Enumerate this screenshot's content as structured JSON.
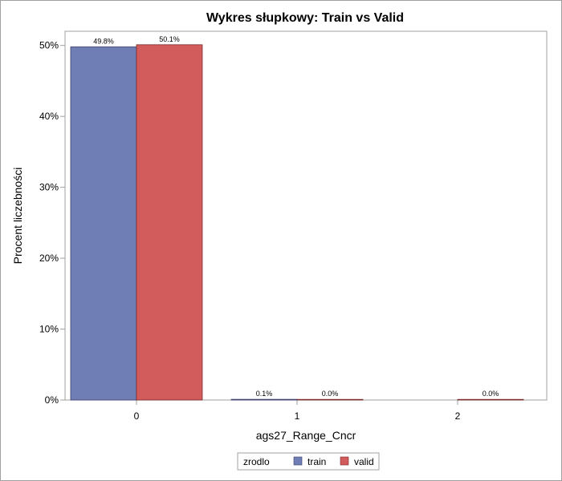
{
  "chart_data": {
    "type": "bar",
    "title": "Wykres słupkowy: Train vs Valid",
    "xlabel": "ags27_Range_Cncr",
    "ylabel": "Procent liczebności",
    "categories": [
      "0",
      "1",
      "2"
    ],
    "ylim": [
      0,
      52
    ],
    "yticks": [
      0,
      10,
      20,
      30,
      40,
      50
    ],
    "ytick_labels": [
      "0%",
      "10%",
      "20%",
      "30%",
      "40%",
      "50%"
    ],
    "series": [
      {
        "name": "train",
        "color": "#6f7fb5",
        "values": [
          49.8,
          0.1,
          null
        ],
        "labels": [
          "49.8%",
          "0.1%",
          ""
        ]
      },
      {
        "name": "valid",
        "color": "#d25b5b",
        "values": [
          50.1,
          0.0,
          0.0
        ],
        "labels": [
          "50.1%",
          "0.0%",
          "0.0%"
        ]
      }
    ],
    "legend": {
      "title": "zrodlo",
      "position": "bottom-center"
    },
    "grid": false
  }
}
